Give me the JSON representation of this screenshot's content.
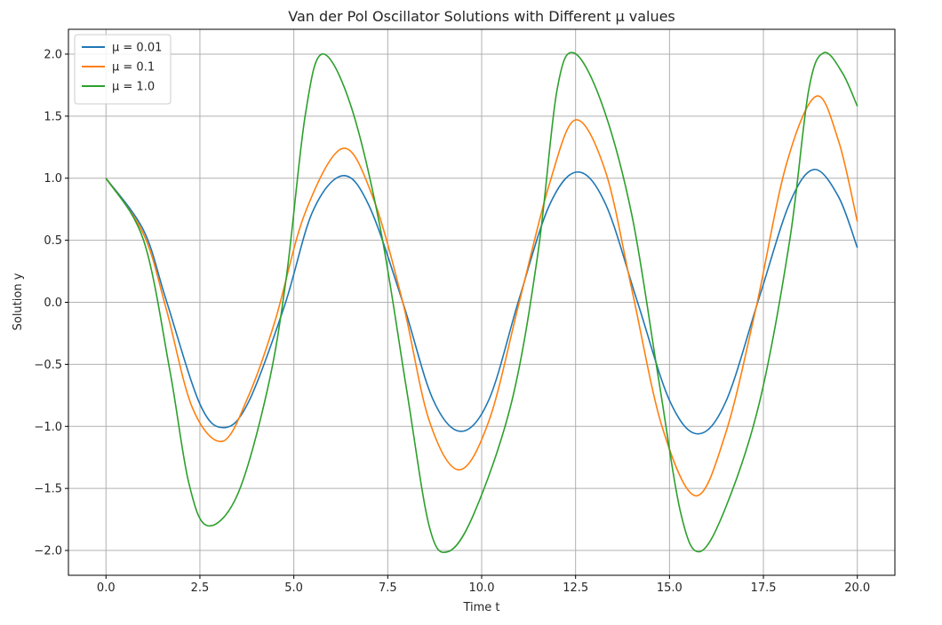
{
  "chart_data": {
    "type": "line",
    "title": "Van der Pol Oscillator Solutions with Different μ values",
    "xlabel": "Time t",
    "ylabel": "Solution y",
    "xlim": [
      -1.0,
      21.0
    ],
    "ylim": [
      -2.2,
      2.2
    ],
    "xticks": [
      0.0,
      2.5,
      5.0,
      7.5,
      10.0,
      12.5,
      15.0,
      17.5,
      20.0
    ],
    "xtick_labels": [
      "0.0",
      "2.5",
      "5.0",
      "7.5",
      "10.0",
      "12.5",
      "15.0",
      "17.5",
      "20.0"
    ],
    "yticks": [
      -2.0,
      -1.5,
      -1.0,
      -0.5,
      0.0,
      0.5,
      1.0,
      1.5,
      2.0
    ],
    "ytick_labels": [
      "−2.0",
      "−1.5",
      "−1.0",
      "−0.5",
      "0.0",
      "0.5",
      "1.0",
      "1.5",
      "2.0"
    ],
    "grid": true,
    "legend_position": "top-left",
    "series": [
      {
        "name": "μ = 0.01",
        "color": "#1f77b4",
        "x": [
          0.0,
          1.0,
          1.6,
          2.5,
          3.15,
          3.8,
          4.75,
          5.5,
          6.3,
          7.0,
          7.9,
          8.7,
          9.45,
          10.2,
          11.0,
          11.8,
          12.55,
          13.3,
          14.15,
          15.0,
          15.75,
          16.5,
          17.4,
          18.2,
          18.85,
          19.5,
          20.0
        ],
        "y": [
          1.0,
          0.58,
          0.02,
          -0.82,
          -1.01,
          -0.8,
          -0.03,
          0.73,
          1.02,
          0.78,
          0.0,
          -0.78,
          -1.04,
          -0.78,
          0.03,
          0.78,
          1.05,
          0.79,
          0.0,
          -0.79,
          -1.06,
          -0.8,
          0.05,
          0.8,
          1.07,
          0.85,
          0.44
        ]
      },
      {
        "name": "μ = 0.1",
        "color": "#ff7f0e",
        "x": [
          0.0,
          1.0,
          1.6,
          2.3,
          3.1,
          3.8,
          4.5,
          5.3,
          6.3,
          7.1,
          7.9,
          8.6,
          9.4,
          10.2,
          11.0,
          11.8,
          12.5,
          13.3,
          14.0,
          14.8,
          15.7,
          16.5,
          17.3,
          18.1,
          18.9,
          19.5,
          20.0
        ],
        "y": [
          1.0,
          0.55,
          -0.05,
          -0.85,
          -1.12,
          -0.75,
          -0.15,
          0.72,
          1.24,
          0.85,
          0.0,
          -0.95,
          -1.35,
          -0.95,
          0.0,
          0.95,
          1.47,
          1.05,
          0.1,
          -1.0,
          -1.56,
          -1.05,
          -0.05,
          1.1,
          1.66,
          1.3,
          0.65
        ]
      },
      {
        "name": "μ = 1.0",
        "color": "#2ca02c",
        "x": [
          0.0,
          1.0,
          1.7,
          2.2,
          2.7,
          3.5,
          4.3,
          4.8,
          5.3,
          5.75,
          6.5,
          7.3,
          8.0,
          8.6,
          9.1,
          9.8,
          10.8,
          11.5,
          12.0,
          12.45,
          13.2,
          14.0,
          14.7,
          15.3,
          15.8,
          16.5,
          17.4,
          18.2,
          18.7,
          19.1,
          19.6,
          20.0
        ],
        "y": [
          1.0,
          0.5,
          -0.55,
          -1.45,
          -1.8,
          -1.55,
          -0.7,
          0.2,
          1.5,
          2.0,
          1.6,
          0.6,
          -0.7,
          -1.8,
          -2.01,
          -1.7,
          -0.8,
          0.4,
          1.7,
          2.01,
          1.6,
          0.7,
          -0.6,
          -1.7,
          -2.01,
          -1.65,
          -0.8,
          0.5,
          1.7,
          2.01,
          1.85,
          1.58
        ]
      }
    ]
  }
}
